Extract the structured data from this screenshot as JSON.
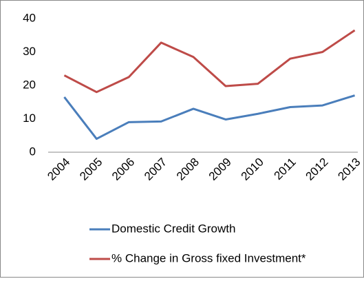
{
  "chart_data": {
    "type": "line",
    "categories": [
      "2004",
      "2005",
      "2006",
      "2007",
      "2008",
      "2009",
      "2010",
      "2011",
      "2012",
      "2013"
    ],
    "series": [
      {
        "name": "Domestic Credit Growth",
        "color": "#4a7ebb",
        "values": [
          16.5,
          4,
          9,
          9.2,
          13,
          9.8,
          11.5,
          13.5,
          14,
          17
        ]
      },
      {
        "name": "% Change in Gross fixed Investment*",
        "color": "#be4b48",
        "values": [
          23,
          18,
          22.5,
          32.8,
          28.5,
          19.8,
          20.5,
          28,
          30,
          36.5
        ]
      }
    ],
    "ylim": [
      0,
      40
    ],
    "yticks": [
      0,
      10,
      20,
      30,
      40
    ],
    "grid": false
  }
}
